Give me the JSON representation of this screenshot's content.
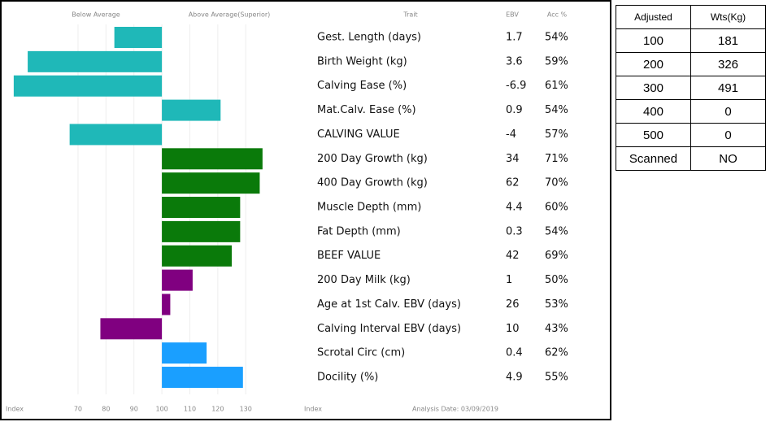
{
  "chart_data": {
    "type": "hbar",
    "header": {
      "below": "Below Average",
      "above": "Above Average(Superior)",
      "trait": "Trait",
      "ebv": "EBV",
      "acc": "Acc %"
    },
    "categories": [
      "Gest. Length (days)",
      "Birth Weight (kg)",
      "Calving Ease (%)",
      "Mat.Calv. Ease (%)",
      "CALVING VALUE",
      "200 Day Growth (kg)",
      "400 Day Growth (kg)",
      "Muscle Depth (mm)",
      "Fat Depth (mm)",
      "BEEF VALUE",
      "200 Day Milk (kg)",
      "Age at 1st Calv. EBV (days)",
      "Calving Interval EBV (days)",
      "Scrotal Circ (cm)",
      "Docility (%)"
    ],
    "values": [
      83,
      52,
      47,
      121,
      67,
      136,
      135,
      128,
      128,
      125,
      111,
      103,
      78,
      116,
      129
    ],
    "colors": [
      "#1fb8b8",
      "#1fb8b8",
      "#1fb8b8",
      "#1fb8b8",
      "#1fb8b8",
      "#0a7a0a",
      "#0a7a0a",
      "#0a7a0a",
      "#0a7a0a",
      "#0a7a0a",
      "#800080",
      "#800080",
      "#800080",
      "#1a9fff",
      "#1a9fff"
    ],
    "ebv": [
      1.7,
      3.6,
      -6.9,
      0.9,
      -4,
      34,
      62,
      4.4,
      0.3,
      42,
      1,
      26,
      10,
      0.4,
      4.9
    ],
    "acc": [
      "54%",
      "59%",
      "61%",
      "54%",
      "57%",
      "71%",
      "70%",
      "60%",
      "54%",
      "69%",
      "50%",
      "53%",
      "43%",
      "62%",
      "55%"
    ],
    "baseline": 100,
    "xlim": [
      45,
      150
    ],
    "xticks": [
      70,
      80,
      90,
      100,
      110,
      120,
      130
    ],
    "axis_label": "Index",
    "footer": "Analysis Date: 03/09/2019"
  },
  "weights_table": {
    "header": [
      "Adjusted",
      "Wts(Kg)"
    ],
    "rows": [
      [
        100,
        181
      ],
      [
        200,
        326
      ],
      [
        300,
        491
      ],
      [
        400,
        0
      ],
      [
        500,
        0
      ],
      [
        "Scanned",
        "NO"
      ]
    ]
  }
}
